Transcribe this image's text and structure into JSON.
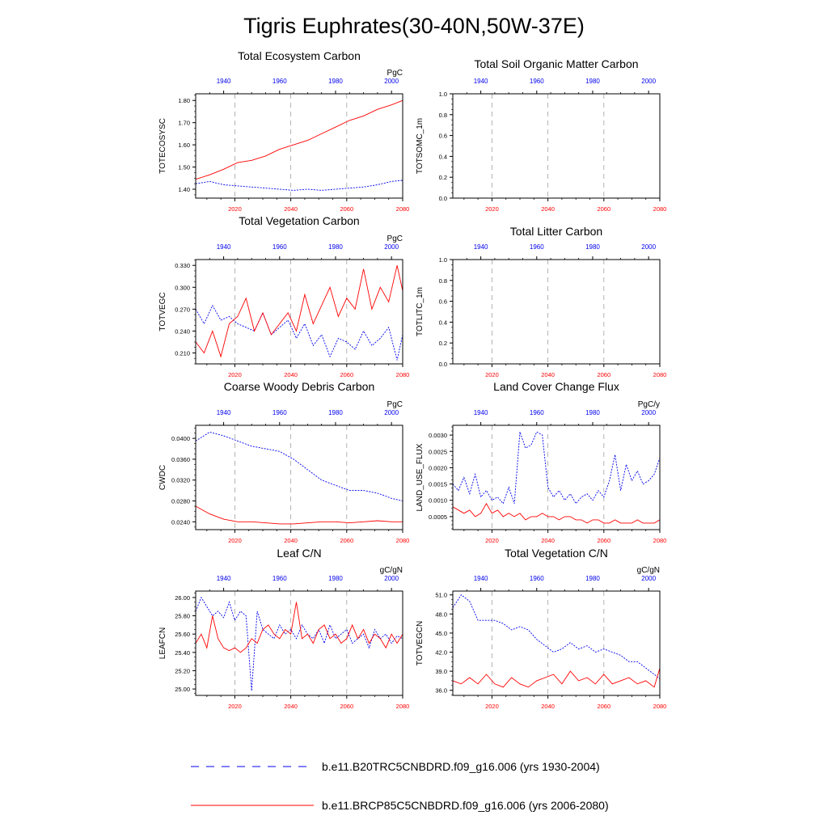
{
  "figure": {
    "title": "Tigris Euphrates(30-40N,50W-37E)",
    "colors": {
      "hist": "#0000ee",
      "future": "#ff0000",
      "grid": "#a0a0a0",
      "axis": "#000000"
    },
    "legend": [
      {
        "series": "hist",
        "style": "dashed",
        "label": "b.e11.B20TRC5CNBDRD.f09_g16.006 (yrs 1930-2004)"
      },
      {
        "series": "future",
        "style": "solid",
        "label": "b.e11.BRCP85C5CNBDRD.f09_g16.006 (yrs 2006-2080)"
      }
    ]
  },
  "chart_data": [
    {
      "id": "totecosysc",
      "type": "line",
      "title": "Total Ecosystem Carbon",
      "ylabel": "TOTECOSYSC",
      "unit": "PgC",
      "ylim": [
        1.36,
        1.83
      ],
      "yticks": [
        1.4,
        1.5,
        1.6,
        1.7,
        1.8
      ],
      "ytick_labels": [
        "1.40",
        "1.50",
        "1.60",
        "1.70",
        "1.80"
      ],
      "bottom_axis": {
        "range": [
          2006,
          2080
        ],
        "ticks": [
          2020,
          2040,
          2060,
          2080
        ]
      },
      "top_axis": {
        "range": [
          1930,
          2004
        ],
        "ticks": [
          1940,
          1960,
          1980,
          2000
        ]
      },
      "series": [
        {
          "name": "b.e11.B20TRC5CNBDRD.f09_g16.006 (yrs 1930-2004)",
          "color": "hist",
          "start": 1930,
          "end": 2004,
          "step": 5,
          "values": [
            1.425,
            1.435,
            1.42,
            1.415,
            1.41,
            1.405,
            1.4,
            1.395,
            1.4,
            1.395,
            1.4,
            1.405,
            1.41,
            1.42,
            1.435,
            1.44
          ]
        },
        {
          "name": "b.e11.BRCP85C5CNBDRD.f09_g16.006 (yrs 2006-2080)",
          "color": "future",
          "start": 2006,
          "end": 2080,
          "step": 5,
          "values": [
            1.445,
            1.465,
            1.49,
            1.52,
            1.53,
            1.55,
            1.58,
            1.6,
            1.62,
            1.65,
            1.68,
            1.71,
            1.73,
            1.76,
            1.78,
            1.8
          ]
        }
      ]
    },
    {
      "id": "totsomc",
      "type": "line",
      "title": "Total Soil Organic Matter Carbon",
      "ylabel": "TOTSOMC_1m",
      "unit": "",
      "ylim": [
        0.0,
        1.0
      ],
      "yticks": [
        0.0,
        0.2,
        0.4,
        0.6,
        0.8,
        1.0
      ],
      "ytick_labels": [
        "0.0",
        "0.2",
        "0.4",
        "0.6",
        "0.8",
        "1.0"
      ],
      "bottom_axis": {
        "range": [
          2006,
          2080
        ],
        "ticks": [
          2020,
          2040,
          2060,
          2080
        ]
      },
      "top_axis": {
        "range": [
          1930,
          2004
        ],
        "ticks": [
          1940,
          1960,
          1980,
          2000
        ]
      },
      "series": []
    },
    {
      "id": "totvegc",
      "type": "line",
      "title": "Total Vegetation Carbon",
      "ylabel": "TOTVEGC",
      "unit": "PgC",
      "ylim": [
        0.195,
        0.338
      ],
      "yticks": [
        0.21,
        0.24,
        0.27,
        0.3,
        0.33
      ],
      "ytick_labels": [
        "0.210",
        "0.240",
        "0.270",
        "0.300",
        "0.330"
      ],
      "bottom_axis": {
        "range": [
          2006,
          2080
        ],
        "ticks": [
          2020,
          2040,
          2060,
          2080
        ]
      },
      "top_axis": {
        "range": [
          1930,
          2004
        ],
        "ticks": [
          1940,
          1960,
          1980,
          2000
        ]
      },
      "series": [
        {
          "name": "b.e11.B20TRC5CNBDRD.f09_g16.006 (yrs 1930-2004)",
          "color": "hist",
          "start": 1930,
          "end": 2004,
          "step": 3,
          "values": [
            0.27,
            0.25,
            0.275,
            0.255,
            0.26,
            0.25,
            0.245,
            0.24,
            0.265,
            0.235,
            0.245,
            0.255,
            0.23,
            0.25,
            0.22,
            0.235,
            0.205,
            0.23,
            0.225,
            0.215,
            0.24,
            0.22,
            0.23,
            0.245,
            0.2,
            0.235
          ]
        },
        {
          "name": "b.e11.BRCP85C5CNBDRD.f09_g16.006 (yrs 2006-2080)",
          "color": "future",
          "start": 2006,
          "end": 2080,
          "step": 3,
          "values": [
            0.225,
            0.21,
            0.24,
            0.205,
            0.25,
            0.26,
            0.285,
            0.24,
            0.265,
            0.235,
            0.25,
            0.265,
            0.24,
            0.29,
            0.25,
            0.275,
            0.3,
            0.26,
            0.285,
            0.27,
            0.325,
            0.27,
            0.3,
            0.28,
            0.33,
            0.295
          ]
        }
      ]
    },
    {
      "id": "totlitc",
      "type": "line",
      "title": "Total Litter Carbon",
      "ylabel": "TOTLITC_1m",
      "unit": "",
      "ylim": [
        0.0,
        1.0
      ],
      "yticks": [
        0.0,
        0.2,
        0.4,
        0.6,
        0.8,
        1.0
      ],
      "ytick_labels": [
        "0.0",
        "0.2",
        "0.4",
        "0.6",
        "0.8",
        "1.0"
      ],
      "bottom_axis": {
        "range": [
          2006,
          2080
        ],
        "ticks": [
          2020,
          2040,
          2060,
          2080
        ]
      },
      "top_axis": {
        "range": [
          1930,
          2004
        ],
        "ticks": [
          1940,
          1960,
          1980,
          2000
        ]
      },
      "series": []
    },
    {
      "id": "cwdc",
      "type": "line",
      "title": "Coarse Woody Debris Carbon",
      "ylabel": "CWDC",
      "unit": "PgC",
      "ylim": [
        0.0225,
        0.0425
      ],
      "yticks": [
        0.024,
        0.028,
        0.032,
        0.036,
        0.04
      ],
      "ytick_labels": [
        "0.0240",
        "0.0280",
        "0.0320",
        "0.0360",
        "0.0400"
      ],
      "bottom_axis": {
        "range": [
          2006,
          2080
        ],
        "ticks": [
          2020,
          2040,
          2060,
          2080
        ]
      },
      "top_axis": {
        "range": [
          1930,
          2004
        ],
        "ticks": [
          1940,
          1960,
          1980,
          2000
        ]
      },
      "series": [
        {
          "name": "b.e11.B20TRC5CNBDRD.f09_g16.006 (yrs 1930-2004)",
          "color": "hist",
          "start": 1930,
          "end": 2004,
          "step": 5,
          "values": [
            0.0395,
            0.0412,
            0.0405,
            0.0395,
            0.0385,
            0.038,
            0.0375,
            0.036,
            0.034,
            0.032,
            0.031,
            0.03,
            0.03,
            0.0295,
            0.0285,
            0.028
          ]
        },
        {
          "name": "b.e11.BRCP85C5CNBDRD.f09_g16.006 (yrs 2006-2080)",
          "color": "future",
          "start": 2006,
          "end": 2080,
          "step": 5,
          "values": [
            0.027,
            0.0255,
            0.0245,
            0.024,
            0.024,
            0.0238,
            0.0236,
            0.0236,
            0.0238,
            0.024,
            0.024,
            0.0238,
            0.024,
            0.0242,
            0.024,
            0.024
          ]
        }
      ]
    },
    {
      "id": "land_use_flux",
      "type": "line",
      "title": "Land Cover Change Flux",
      "ylabel": "LAND_USE_FLUX",
      "unit": "PgC/y",
      "ylim": [
        0.0001,
        0.0033
      ],
      "yticks": [
        0.0005,
        0.001,
        0.0015,
        0.002,
        0.0025,
        0.003
      ],
      "ytick_labels": [
        "0.0005",
        "0.0010",
        "0.0015",
        "0.0020",
        "0.0025",
        "0.0030"
      ],
      "bottom_axis": {
        "range": [
          2006,
          2080
        ],
        "ticks": [
          2020,
          2040,
          2060,
          2080
        ]
      },
      "top_axis": {
        "range": [
          1930,
          2004
        ],
        "ticks": [
          1940,
          1960,
          1980,
          2000
        ]
      },
      "series": [
        {
          "name": "b.e11.B20TRC5CNBDRD.f09_g16.006 (yrs 1930-2004)",
          "color": "hist",
          "start": 1930,
          "end": 2004,
          "step": 2,
          "values": [
            0.0015,
            0.0013,
            0.0017,
            0.0012,
            0.0018,
            0.0011,
            0.0013,
            0.001,
            0.0011,
            0.0009,
            0.0014,
            0.0009,
            0.0031,
            0.0026,
            0.0027,
            0.0031,
            0.003,
            0.0014,
            0.0011,
            0.0013,
            0.001,
            0.0012,
            0.0009,
            0.0011,
            0.0012,
            0.001,
            0.0013,
            0.0011,
            0.0016,
            0.0024,
            0.0013,
            0.0021,
            0.0016,
            0.0019,
            0.0015,
            0.0016,
            0.0018,
            0.0023
          ]
        },
        {
          "name": "b.e11.BRCP85C5CNBDRD.f09_g16.006 (yrs 2006-2080)",
          "color": "future",
          "start": 2006,
          "end": 2080,
          "step": 2,
          "values": [
            0.0008,
            0.0007,
            0.0006,
            0.0007,
            0.0005,
            0.0006,
            0.0009,
            0.0006,
            0.0007,
            0.0005,
            0.0006,
            0.0005,
            0.0006,
            0.0004,
            0.0005,
            0.0005,
            0.0006,
            0.0005,
            0.0005,
            0.0004,
            0.0005,
            0.0005,
            0.0004,
            0.0004,
            0.0003,
            0.0004,
            0.0004,
            0.0003,
            0.0003,
            0.0004,
            0.0003,
            0.0003,
            0.0003,
            0.0004,
            0.0003,
            0.0003,
            0.0003,
            0.0004
          ]
        }
      ]
    },
    {
      "id": "leafcn",
      "type": "line",
      "title": "Leaf C/N",
      "ylabel": "LEAFCN",
      "unit": "gC/gN",
      "ylim": [
        24.93,
        26.07
      ],
      "yticks": [
        25.0,
        25.2,
        25.4,
        25.6,
        25.8,
        26.0
      ],
      "ytick_labels": [
        "25.00",
        "25.20",
        "25.40",
        "25.60",
        "25.80",
        "26.00"
      ],
      "bottom_axis": {
        "range": [
          2006,
          2080
        ],
        "ticks": [
          2020,
          2040,
          2060,
          2080
        ]
      },
      "top_axis": {
        "range": [
          1930,
          2004
        ],
        "ticks": [
          1940,
          1960,
          1980,
          2000
        ]
      },
      "series": [
        {
          "name": "b.e11.B20TRC5CNBDRD.f09_g16.006 (yrs 1930-2004)",
          "color": "hist",
          "start": 1930,
          "end": 2004,
          "step": 2,
          "values": [
            25.85,
            26.0,
            25.9,
            25.8,
            25.85,
            25.78,
            25.95,
            25.75,
            25.85,
            25.8,
            24.98,
            25.85,
            25.65,
            25.6,
            25.55,
            25.7,
            25.6,
            25.65,
            25.55,
            25.7,
            25.6,
            25.55,
            25.65,
            25.5,
            25.7,
            25.55,
            25.6,
            25.65,
            25.5,
            25.55,
            25.6,
            25.45,
            25.65,
            25.55,
            25.6,
            25.5,
            25.58,
            25.55
          ]
        },
        {
          "name": "b.e11.BRCP85C5CNBDRD.f09_g16.006 (yrs 2006-2080)",
          "color": "future",
          "start": 2006,
          "end": 2080,
          "step": 2,
          "values": [
            25.5,
            25.6,
            25.45,
            25.8,
            25.55,
            25.45,
            25.42,
            25.45,
            25.4,
            25.45,
            25.55,
            25.5,
            25.65,
            25.7,
            25.6,
            25.55,
            25.65,
            25.6,
            25.95,
            25.55,
            25.6,
            25.5,
            25.65,
            25.7,
            25.55,
            25.6,
            25.5,
            25.55,
            25.7,
            25.55,
            25.65,
            25.5,
            25.6,
            25.55,
            25.45,
            25.6,
            25.5,
            25.6
          ]
        }
      ]
    },
    {
      "id": "totvegcn",
      "type": "line",
      "title": "Total Vegetation C/N",
      "ylabel": "TOTVEGCN",
      "unit": "gC/gN",
      "ylim": [
        35.2,
        51.6
      ],
      "yticks": [
        36.0,
        39.0,
        42.0,
        45.0,
        48.0,
        51.0
      ],
      "ytick_labels": [
        "36.0",
        "39.0",
        "42.0",
        "45.0",
        "48.0",
        "51.0"
      ],
      "bottom_axis": {
        "range": [
          2006,
          2080
        ],
        "ticks": [
          2020,
          2040,
          2060,
          2080
        ]
      },
      "top_axis": {
        "range": [
          1930,
          2004
        ],
        "ticks": [
          1940,
          1960,
          1980,
          2000
        ]
      },
      "series": [
        {
          "name": "b.e11.B20TRC5CNBDRD.f09_g16.006 (yrs 1930-2004)",
          "color": "hist",
          "start": 1930,
          "end": 2004,
          "step": 3,
          "values": [
            49.0,
            51.0,
            50.0,
            47.0,
            47.0,
            47.0,
            46.5,
            45.5,
            46.0,
            45.5,
            44.0,
            43.0,
            42.0,
            42.5,
            43.5,
            42.5,
            43.0,
            42.0,
            42.5,
            42.0,
            41.5,
            40.5,
            40.5,
            39.5,
            38.5,
            37.8
          ]
        },
        {
          "name": "b.e11.BRCP85C5CNBDRD.f09_g16.006 (yrs 2006-2080)",
          "color": "future",
          "start": 2006,
          "end": 2080,
          "step": 3,
          "values": [
            37.5,
            37.0,
            38.0,
            37.0,
            38.5,
            37.0,
            36.5,
            38.0,
            37.0,
            36.5,
            37.5,
            38.0,
            38.5,
            37.0,
            39.0,
            37.5,
            38.0,
            37.0,
            38.5,
            37.0,
            37.5,
            38.0,
            37.0,
            37.5,
            36.5,
            39.5
          ]
        }
      ]
    }
  ]
}
